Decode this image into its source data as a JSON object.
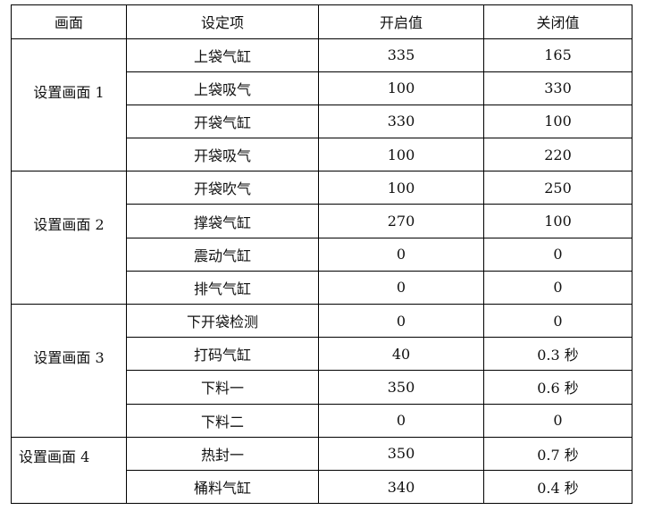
{
  "headers": [
    "画面",
    "设定项",
    "开启值",
    "关闭值"
  ],
  "groups": [
    {
      "name": "设置画面 1",
      "rows": [
        {
          "item": "上袋气缸",
          "open": "335",
          "close": "165"
        },
        {
          "item": "上袋吸气",
          "open": "100",
          "close": "330"
        },
        {
          "item": "开袋气缸",
          "open": "330",
          "close": "100"
        },
        {
          "item": "开袋吸气",
          "open": "100",
          "close": "220"
        }
      ]
    },
    {
      "name": "设置画面 2",
      "rows": [
        {
          "item": "开袋吹气",
          "open": "100",
          "close": "250"
        },
        {
          "item": "撑袋气缸",
          "open": "270",
          "close": "100"
        },
        {
          "item": "震动气缸",
          "open": "0",
          "close": "0"
        },
        {
          "item": "排气气缸",
          "open": "0",
          "close": "0"
        }
      ]
    },
    {
      "name": "设置画面 3",
      "rows": [
        {
          "item": "下开袋检测",
          "open": "0",
          "close": "0"
        },
        {
          "item": "打码气缸",
          "open": "40",
          "close": "0.3 秒"
        },
        {
          "item": "下料一",
          "open": "350",
          "close": "0.6 秒"
        },
        {
          "item": "下料二",
          "open": "0",
          "close": "0"
        }
      ]
    },
    {
      "name": "设置画面 4",
      "rows": [
        {
          "item": "热封一",
          "open": "350",
          "close": "0.7 秒"
        },
        {
          "item": "桶料气缸",
          "open": "340",
          "close": "0.4 秒"
        }
      ]
    }
  ]
}
